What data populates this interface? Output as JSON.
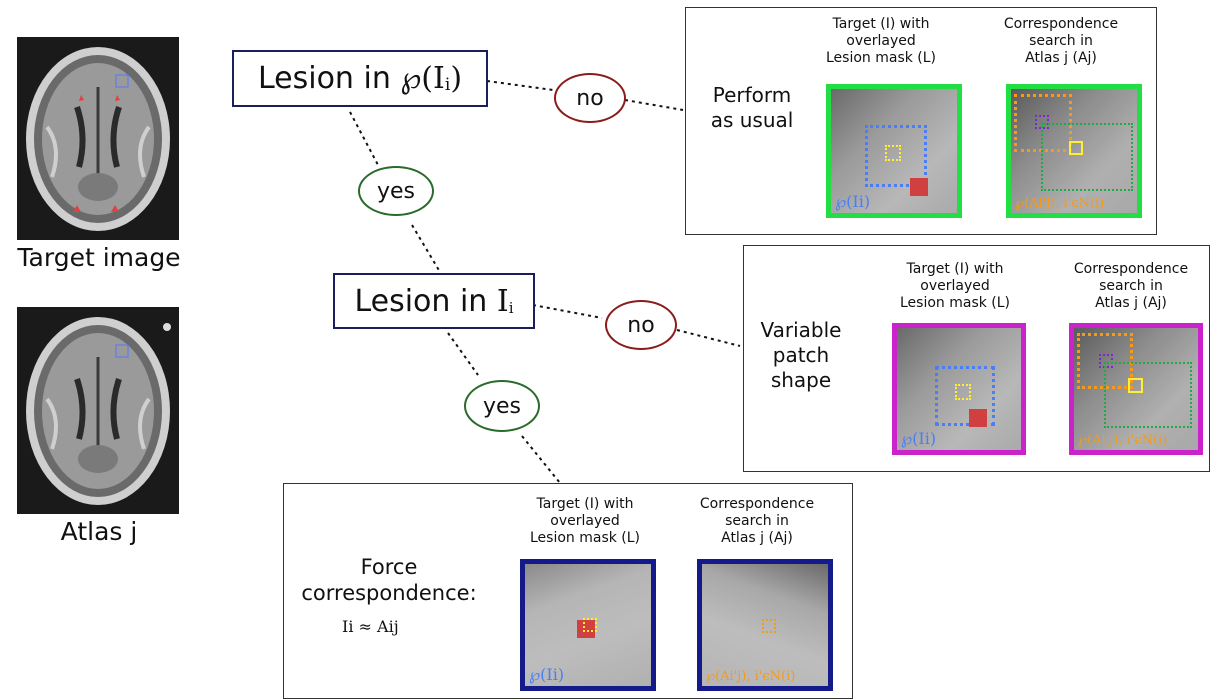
{
  "left": {
    "target_caption": "Target image",
    "atlas_caption": "Atlas j"
  },
  "decisions": {
    "first": {
      "prefix": "Lesion in ",
      "symbol": "℘(I",
      "sub": "i",
      "suffix": ")"
    },
    "second": {
      "prefix": "Lesion in ",
      "symbol": "I",
      "sub": "i"
    }
  },
  "ovals": {
    "no1": "no",
    "yes1": "yes",
    "no2": "no",
    "yes2": "yes"
  },
  "panels": {
    "usual": {
      "label_lines": [
        "Perform",
        "as usual"
      ],
      "target_title": [
        "Target (I) with",
        "overlayed",
        "Lesion mask (L)"
      ],
      "search_title": [
        "Correspondence",
        "search in",
        "Atlas j (Aj)"
      ],
      "target_caption": "℘(Ii)",
      "search_caption": "℘(Ai'j), i'ϵN(i)",
      "frame_color": "#22dd44"
    },
    "variable": {
      "label_lines": [
        "Variable",
        "patch",
        "shape"
      ],
      "target_title": [
        "Target (I) with",
        "overlayed",
        "Lesion mask (L)"
      ],
      "search_title": [
        "Correspondence",
        "search in",
        "Atlas j (Aj)"
      ],
      "target_caption": "℘(Ii)",
      "search_caption": "℘(Ai'j), i'ϵN(i)",
      "frame_color": "#cc22cc"
    },
    "force": {
      "label_lines": [
        "Force",
        "correspondence:"
      ],
      "formula": "Ii  ≈ Aij",
      "target_title": [
        "Target (I) with",
        "overlayed",
        "Lesion mask (L)"
      ],
      "search_title": [
        "Correspondence",
        "search in",
        "Atlas j (Aj)"
      ],
      "target_caption": "℘(Ii)",
      "search_caption": "℘(Ai'j), i'ϵN(i)",
      "frame_color": "#141a8a"
    }
  }
}
